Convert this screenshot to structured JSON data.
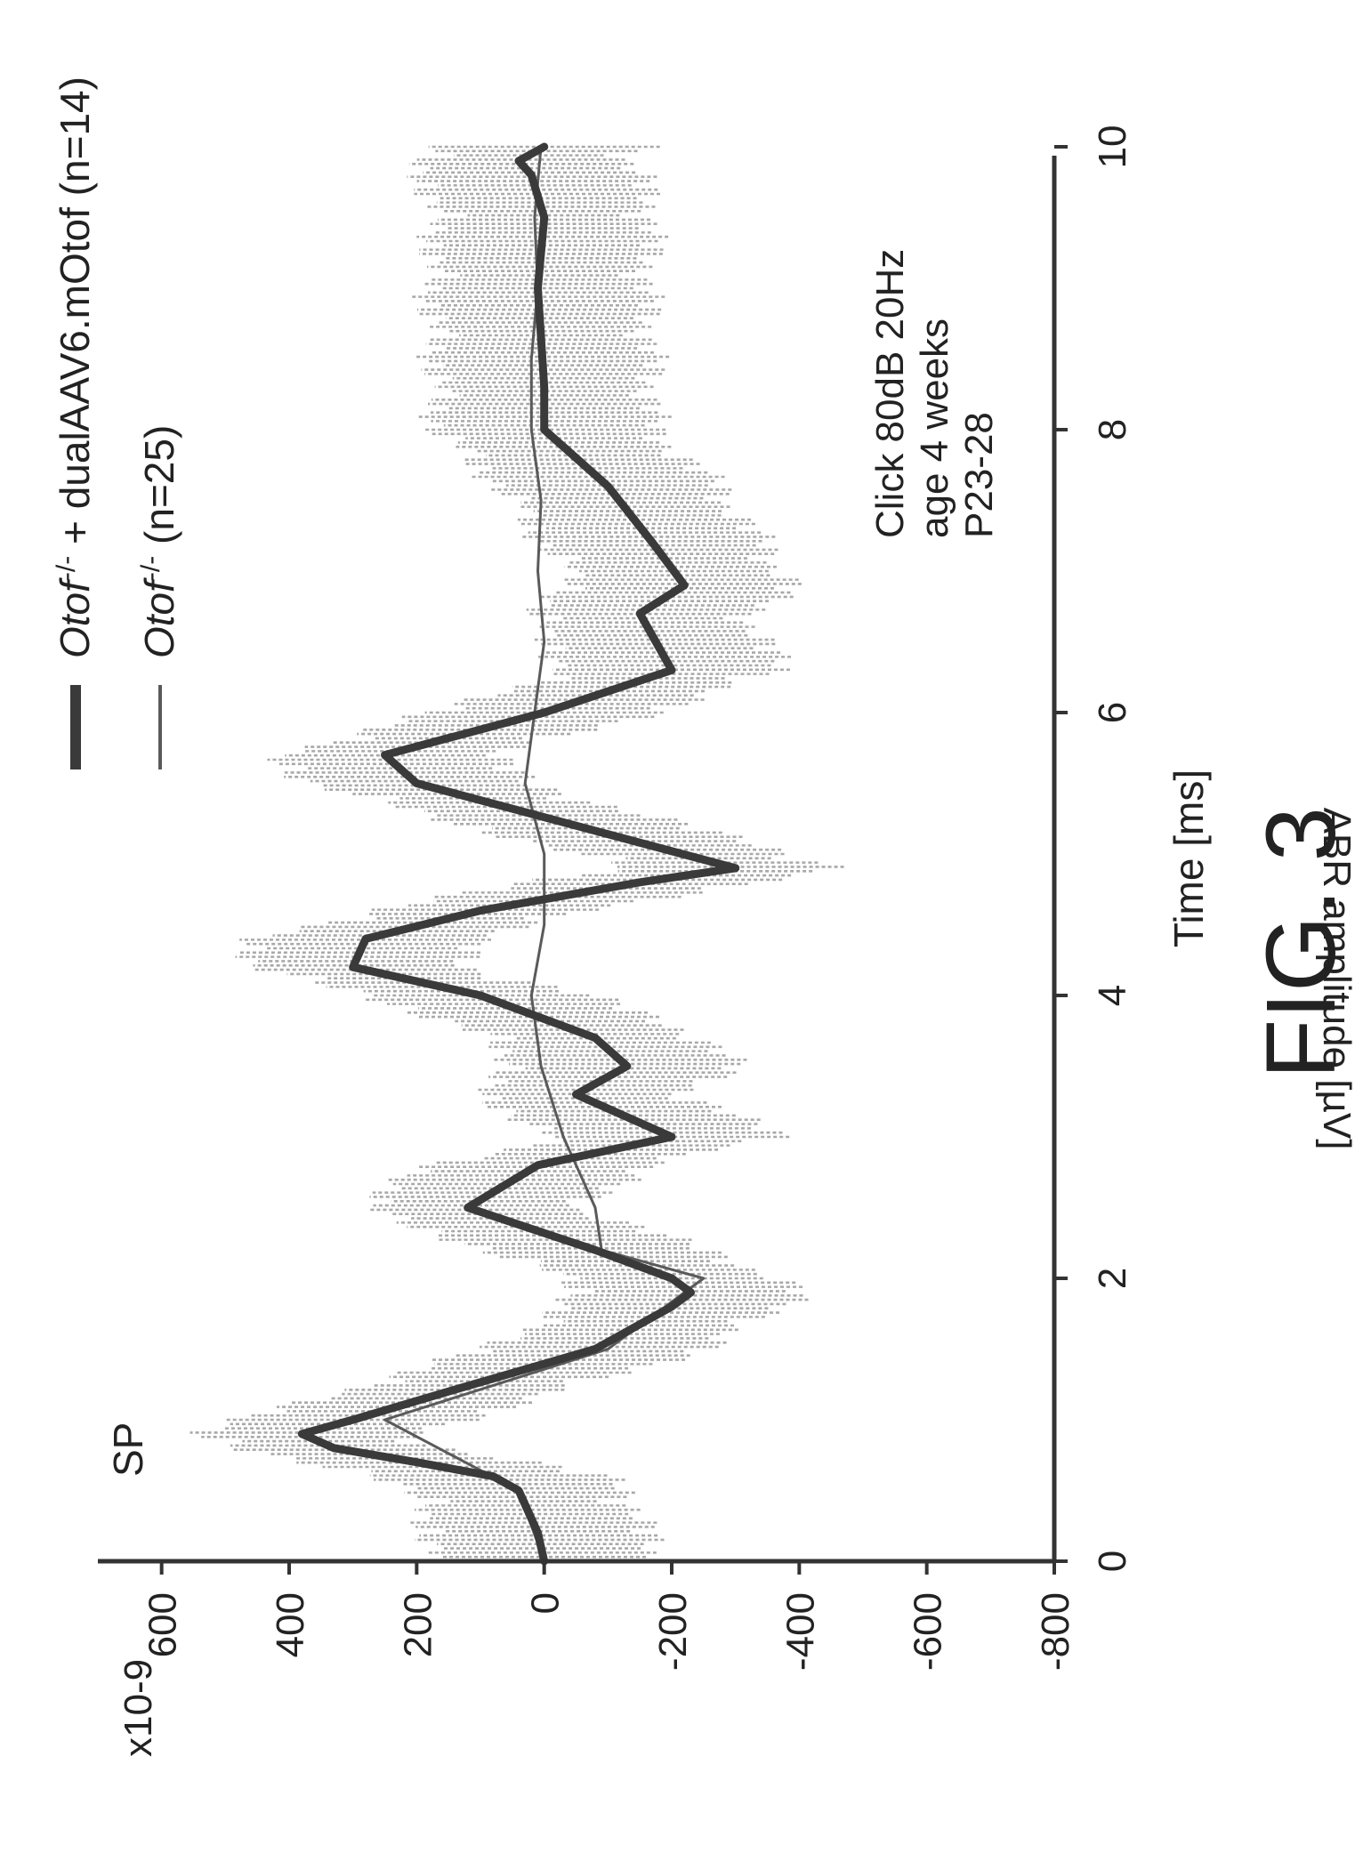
{
  "chart_data": {
    "type": "line",
    "title": "",
    "panel_label": "SP",
    "figure_label": "FIG. 3",
    "xlabel": "Time [ms]",
    "ylabel": "ABR amplitude [µV]",
    "y_multiplier": "x10-9",
    "xlim": [
      0,
      10
    ],
    "ylim": [
      -800,
      700
    ],
    "x_ticks": [
      0,
      2,
      4,
      6,
      8,
      10
    ],
    "y_ticks": [
      600,
      400,
      200,
      0,
      -200,
      -400,
      -600,
      -800
    ],
    "annotation": [
      "Click 80dB 20Hz",
      "age 4 weeks",
      "P23-28"
    ],
    "legend_position": "top",
    "grid": false,
    "colors": {
      "rescued": "#3a3a3a",
      "control": "#5a5a5a",
      "band": "#9a9a9a"
    },
    "series": [
      {
        "name": "Otof -/- + dualAAV6.mOtof (n=14)",
        "name_parts": {
          "gene": "Otof",
          "sup": "-/-",
          "rest": " + dualAAV6.mOtof (n=14)"
        },
        "x": [
          0,
          0.2,
          0.4,
          0.5,
          0.6,
          0.7,
          0.8,
          0.9,
          1.0,
          1.2,
          1.5,
          1.8,
          1.9,
          2.0,
          2.2,
          2.5,
          2.8,
          3.0,
          3.3,
          3.5,
          3.7,
          4.0,
          4.2,
          4.4,
          4.6,
          4.8,
          4.9,
          5.2,
          5.5,
          5.7,
          6.0,
          6.3,
          6.7,
          6.9,
          7.2,
          7.6,
          8.0,
          8.3,
          9.0,
          9.5,
          9.8,
          9.9,
          10.0
        ],
        "y": [
          0,
          10,
          30,
          40,
          80,
          200,
          330,
          380,
          300,
          150,
          -80,
          -200,
          -230,
          -200,
          -80,
          120,
          10,
          -200,
          -50,
          -130,
          -80,
          100,
          300,
          280,
          100,
          -150,
          -300,
          -50,
          200,
          250,
          0,
          -200,
          -150,
          -220,
          -170,
          -100,
          0,
          0,
          10,
          0,
          20,
          40,
          0
        ]
      },
      {
        "name": "Otof -/- (n=25)",
        "name_parts": {
          "gene": "Otof",
          "sup": "-/-",
          "rest": " (n=25)"
        },
        "x": [
          0,
          0.5,
          1.0,
          1.5,
          2.0,
          2.2,
          2.5,
          3.0,
          3.5,
          4.0,
          4.5,
          5.0,
          5.5,
          6.0,
          6.5,
          7.0,
          7.5,
          8.0,
          8.5,
          9.0,
          9.5,
          10.0
        ],
        "y": [
          0,
          40,
          250,
          -100,
          -250,
          -90,
          -80,
          -30,
          5,
          20,
          0,
          0,
          30,
          15,
          0,
          10,
          5,
          20,
          20,
          10,
          15,
          5
        ]
      }
    ]
  }
}
